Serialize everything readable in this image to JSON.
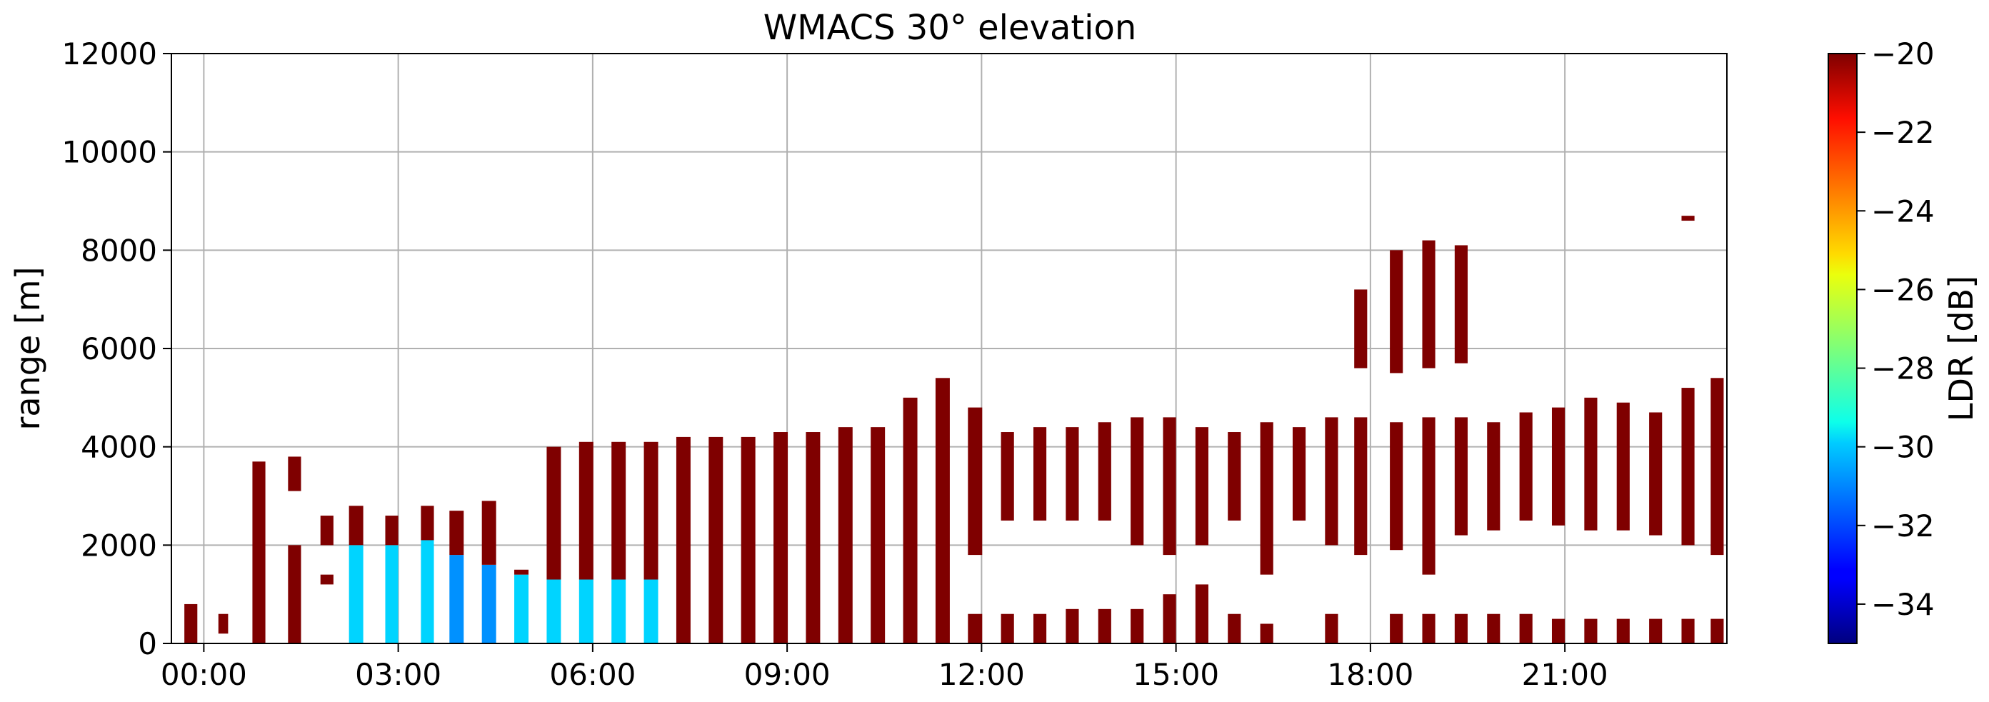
{
  "chart_data": {
    "type": "heatmap",
    "title": "WMACS 30° elevation",
    "xlabel": "",
    "ylabel": "range [m]",
    "xlim": [
      -0.5,
      23.5
    ],
    "ylim": [
      0,
      12000
    ],
    "xticks": [
      {
        "value": 0,
        "label": "00:00"
      },
      {
        "value": 3,
        "label": "03:00"
      },
      {
        "value": 6,
        "label": "06:00"
      },
      {
        "value": 9,
        "label": "09:00"
      },
      {
        "value": 12,
        "label": "12:00"
      },
      {
        "value": 15,
        "label": "15:00"
      },
      {
        "value": 18,
        "label": "18:00"
      },
      {
        "value": 21,
        "label": "21:00"
      }
    ],
    "yticks": [
      {
        "value": 0,
        "label": "0"
      },
      {
        "value": 2000,
        "label": "2000"
      },
      {
        "value": 4000,
        "label": "4000"
      },
      {
        "value": 6000,
        "label": "6000"
      },
      {
        "value": 8000,
        "label": "8000"
      },
      {
        "value": 10000,
        "label": "10000"
      },
      {
        "value": 12000,
        "label": "12000"
      }
    ],
    "grid": true,
    "colorbar": {
      "label": "LDR [dB]",
      "range": [
        -35,
        -20
      ],
      "colormap": "jet",
      "ticks": [
        {
          "value": -20,
          "label": "−20"
        },
        {
          "value": -22,
          "label": "−22"
        },
        {
          "value": -24,
          "label": "−24"
        },
        {
          "value": -26,
          "label": "−26"
        },
        {
          "value": -28,
          "label": "−28"
        },
        {
          "value": -30,
          "label": "−30"
        },
        {
          "value": -32,
          "label": "−32"
        },
        {
          "value": -34,
          "label": "−34"
        }
      ]
    },
    "colors": {
      "dominant_ldr": "#800000",
      "low_ldr": "#33aaff",
      "mid_ldr": "#ff2200",
      "grid": "#b0b0b0"
    },
    "note": "Vertical scan columns; x in hours UTC, range in m; ldr in dB (dominant value)",
    "columns": [
      {
        "t": -0.2,
        "w": 0.2,
        "segs": [
          [
            0,
            800,
            -20
          ]
        ]
      },
      {
        "t": 0.3,
        "w": 0.15,
        "segs": [
          [
            200,
            600,
            -20
          ]
        ]
      },
      {
        "t": 0.85,
        "w": 0.2,
        "segs": [
          [
            0,
            3700,
            -20
          ]
        ]
      },
      {
        "t": 1.4,
        "w": 0.2,
        "segs": [
          [
            0,
            2000,
            -20
          ],
          [
            3100,
            3800,
            -20
          ]
        ]
      },
      {
        "t": 1.9,
        "w": 0.2,
        "segs": [
          [
            1200,
            1400,
            -20
          ],
          [
            2000,
            2600,
            -20
          ]
        ]
      },
      {
        "t": 2.35,
        "w": 0.22,
        "segs": [
          [
            0,
            2000,
            -30
          ],
          [
            2000,
            2800,
            -20
          ]
        ]
      },
      {
        "t": 2.9,
        "w": 0.2,
        "segs": [
          [
            0,
            2000,
            -30
          ],
          [
            2000,
            2600,
            -20
          ]
        ]
      },
      {
        "t": 3.45,
        "w": 0.2,
        "segs": [
          [
            0,
            2100,
            -30
          ],
          [
            2100,
            2800,
            -20
          ]
        ]
      },
      {
        "t": 3.9,
        "w": 0.22,
        "segs": [
          [
            0,
            1800,
            -31
          ],
          [
            1800,
            2700,
            -20
          ]
        ]
      },
      {
        "t": 4.4,
        "w": 0.22,
        "segs": [
          [
            0,
            1600,
            -31
          ],
          [
            1600,
            2900,
            -20
          ]
        ]
      },
      {
        "t": 4.9,
        "w": 0.22,
        "segs": [
          [
            0,
            1400,
            -30
          ],
          [
            1400,
            1500,
            -20
          ]
        ]
      },
      {
        "t": 5.4,
        "w": 0.22,
        "segs": [
          [
            0,
            1300,
            -30
          ],
          [
            1300,
            4000,
            -20
          ]
        ]
      },
      {
        "t": 5.9,
        "w": 0.22,
        "segs": [
          [
            0,
            1300,
            -30
          ],
          [
            1300,
            4100,
            -20
          ]
        ]
      },
      {
        "t": 6.4,
        "w": 0.22,
        "segs": [
          [
            0,
            1300,
            -30
          ],
          [
            1300,
            4100,
            -20
          ]
        ]
      },
      {
        "t": 6.9,
        "w": 0.22,
        "segs": [
          [
            0,
            1300,
            -30
          ],
          [
            1300,
            4100,
            -20
          ]
        ]
      },
      {
        "t": 7.4,
        "w": 0.22,
        "segs": [
          [
            0,
            4200,
            -20
          ]
        ]
      },
      {
        "t": 7.9,
        "w": 0.22,
        "segs": [
          [
            0,
            4200,
            -20
          ]
        ]
      },
      {
        "t": 8.4,
        "w": 0.22,
        "segs": [
          [
            0,
            4200,
            -20
          ]
        ]
      },
      {
        "t": 8.9,
        "w": 0.22,
        "segs": [
          [
            0,
            4300,
            -20
          ]
        ]
      },
      {
        "t": 9.4,
        "w": 0.22,
        "segs": [
          [
            0,
            4300,
            -20
          ]
        ]
      },
      {
        "t": 9.9,
        "w": 0.22,
        "segs": [
          [
            0,
            4400,
            -20
          ]
        ]
      },
      {
        "t": 10.4,
        "w": 0.22,
        "segs": [
          [
            0,
            4400,
            -20
          ]
        ]
      },
      {
        "t": 10.9,
        "w": 0.22,
        "segs": [
          [
            0,
            5000,
            -20
          ]
        ]
      },
      {
        "t": 11.4,
        "w": 0.22,
        "segs": [
          [
            0,
            5400,
            -20
          ]
        ]
      },
      {
        "t": 11.9,
        "w": 0.22,
        "segs": [
          [
            0,
            600,
            -20
          ],
          [
            1800,
            4800,
            -20
          ]
        ]
      },
      {
        "t": 12.4,
        "w": 0.2,
        "segs": [
          [
            0,
            600,
            -20
          ],
          [
            2500,
            4300,
            -20
          ]
        ]
      },
      {
        "t": 12.9,
        "w": 0.2,
        "segs": [
          [
            0,
            600,
            -20
          ],
          [
            2500,
            4400,
            -20
          ]
        ]
      },
      {
        "t": 13.4,
        "w": 0.2,
        "segs": [
          [
            0,
            700,
            -20
          ],
          [
            2500,
            4400,
            -20
          ]
        ]
      },
      {
        "t": 13.9,
        "w": 0.2,
        "segs": [
          [
            0,
            700,
            -20
          ],
          [
            2500,
            4500,
            -20
          ]
        ]
      },
      {
        "t": 14.4,
        "w": 0.2,
        "segs": [
          [
            0,
            700,
            -20
          ],
          [
            2000,
            4600,
            -20
          ]
        ]
      },
      {
        "t": 14.9,
        "w": 0.2,
        "segs": [
          [
            0,
            1000,
            -20
          ],
          [
            1800,
            4600,
            -20
          ]
        ]
      },
      {
        "t": 15.4,
        "w": 0.2,
        "segs": [
          [
            0,
            1200,
            -20
          ],
          [
            2000,
            4400,
            -20
          ]
        ]
      },
      {
        "t": 15.9,
        "w": 0.2,
        "segs": [
          [
            0,
            600,
            -20
          ],
          [
            2500,
            4300,
            -20
          ]
        ]
      },
      {
        "t": 16.4,
        "w": 0.2,
        "segs": [
          [
            0,
            400,
            -20
          ],
          [
            1400,
            4500,
            -20
          ]
        ]
      },
      {
        "t": 16.9,
        "w": 0.2,
        "segs": [
          [
            2500,
            4400,
            -20
          ]
        ]
      },
      {
        "t": 17.4,
        "w": 0.2,
        "segs": [
          [
            0,
            600,
            -20
          ],
          [
            2000,
            4600,
            -20
          ]
        ]
      },
      {
        "t": 17.85,
        "w": 0.2,
        "segs": [
          [
            1800,
            4600,
            -20
          ],
          [
            5600,
            7200,
            -20
          ]
        ]
      },
      {
        "t": 18.4,
        "w": 0.2,
        "segs": [
          [
            0,
            600,
            -20
          ],
          [
            1900,
            4500,
            -20
          ],
          [
            5500,
            8000,
            -20
          ]
        ]
      },
      {
        "t": 18.9,
        "w": 0.2,
        "segs": [
          [
            0,
            600,
            -20
          ],
          [
            1400,
            4600,
            -20
          ],
          [
            5600,
            8200,
            -20
          ]
        ]
      },
      {
        "t": 19.4,
        "w": 0.2,
        "segs": [
          [
            0,
            600,
            -20
          ],
          [
            2200,
            4600,
            -20
          ],
          [
            5700,
            8100,
            -20
          ]
        ]
      },
      {
        "t": 19.9,
        "w": 0.2,
        "segs": [
          [
            0,
            600,
            -20
          ],
          [
            2300,
            4500,
            -20
          ]
        ]
      },
      {
        "t": 20.4,
        "w": 0.2,
        "segs": [
          [
            0,
            600,
            -20
          ],
          [
            2500,
            4700,
            -20
          ]
        ]
      },
      {
        "t": 20.9,
        "w": 0.2,
        "segs": [
          [
            0,
            500,
            -20
          ],
          [
            2400,
            4800,
            -20
          ]
        ]
      },
      {
        "t": 21.4,
        "w": 0.2,
        "segs": [
          [
            0,
            500,
            -20
          ],
          [
            2300,
            5000,
            -20
          ]
        ]
      },
      {
        "t": 21.9,
        "w": 0.2,
        "segs": [
          [
            0,
            500,
            -20
          ],
          [
            2300,
            4900,
            -20
          ]
        ]
      },
      {
        "t": 22.4,
        "w": 0.2,
        "segs": [
          [
            0,
            500,
            -20
          ],
          [
            2200,
            4700,
            -20
          ]
        ]
      },
      {
        "t": 22.9,
        "w": 0.2,
        "segs": [
          [
            0,
            500,
            -20
          ],
          [
            2000,
            5200,
            -20
          ],
          [
            8600,
            8700,
            -20
          ]
        ]
      },
      {
        "t": 23.35,
        "w": 0.2,
        "segs": [
          [
            0,
            500,
            -20
          ],
          [
            1800,
            5400,
            -20
          ]
        ]
      }
    ]
  }
}
